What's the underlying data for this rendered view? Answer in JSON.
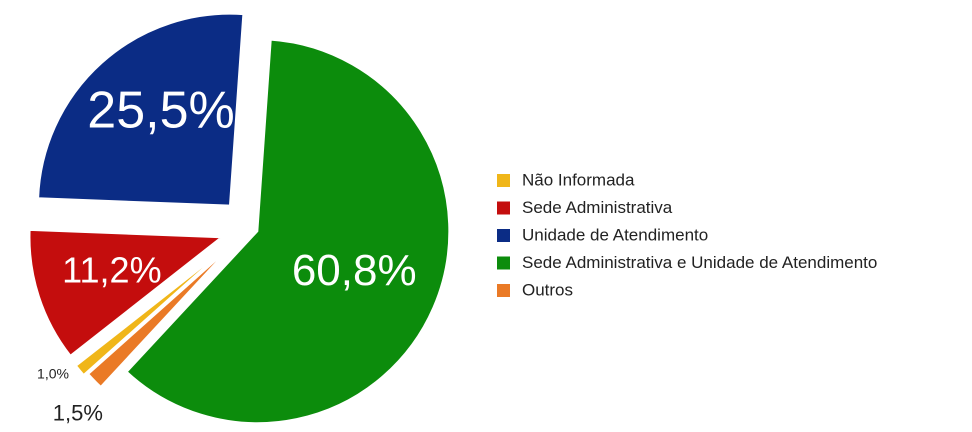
{
  "chart_data": {
    "type": "pie",
    "categories": [
      "Não Informada",
      "Sede Administrativa",
      "Unidade de Atendimento",
      "Sede Administrativa e Unidade de Atendimento",
      "Outros"
    ],
    "values": [
      1.0,
      11.2,
      25.5,
      60.8,
      1.5
    ],
    "value_labels": [
      "1,0%",
      "11,2%",
      "25,5%",
      "60,8%",
      "1,5%"
    ],
    "colors": [
      "#f0b619",
      "#c40d0d",
      "#0b2c85",
      "#0c8c0c",
      "#ea7a26"
    ],
    "legend": "right"
  }
}
